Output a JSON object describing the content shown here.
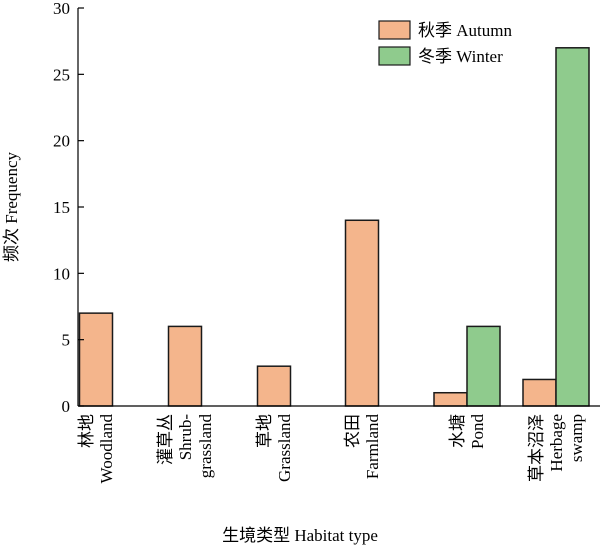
{
  "chart_data": {
    "type": "bar",
    "xlabel": "生境类型 Habitat type",
    "ylabel": "频次 Frequency",
    "ylim": [
      0,
      30
    ],
    "yticks": [
      0,
      5,
      10,
      15,
      20,
      25,
      30
    ],
    "grid": false,
    "legend_position": "top-right",
    "categories": [
      {
        "lines": [
          "林地",
          "Woodland"
        ]
      },
      {
        "lines": [
          "灌草丛",
          "Shrub-",
          "grassland"
        ]
      },
      {
        "lines": [
          "草地",
          "Grassland"
        ]
      },
      {
        "lines": [
          "农田",
          "Farmland"
        ]
      },
      {
        "lines": [
          "水塘",
          "Pond"
        ]
      },
      {
        "lines": [
          "草本沼泽",
          "Herbage",
          "swamp"
        ]
      }
    ],
    "series": [
      {
        "name": "秋季 Autumn",
        "color": "#f4b58c",
        "values": [
          7,
          6,
          3,
          14,
          1,
          2
        ]
      },
      {
        "name": "冬季 Winter",
        "color": "#8fcb8d",
        "values": [
          0,
          0,
          0,
          0,
          6,
          27
        ]
      }
    ]
  }
}
